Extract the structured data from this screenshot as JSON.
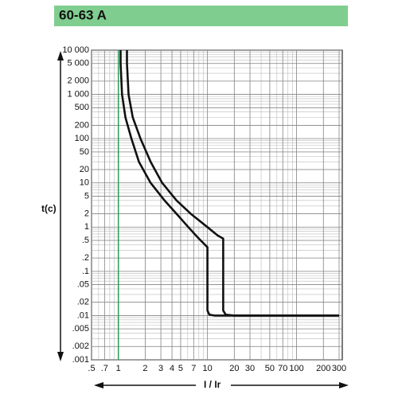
{
  "chart_data": {
    "type": "line",
    "title": "60-63 A",
    "x_label": "I / Ir",
    "y_label": "t(c)",
    "x_scale": "log",
    "y_scale": "log",
    "grid": true,
    "xlim": [
      0.5,
      300
    ],
    "ylim": [
      0.001,
      10000
    ],
    "xticks": [
      {
        "value": 0.5,
        "label": ".5"
      },
      {
        "value": 0.7,
        "label": ".7"
      },
      1,
      2,
      3,
      4,
      5,
      7,
      10,
      20,
      30,
      50,
      70,
      100,
      200,
      300
    ],
    "yticks": [
      {
        "value": 10000,
        "label": "10 000"
      },
      {
        "value": 5000,
        "label": "5 000"
      },
      {
        "value": 2000,
        "label": "2 000"
      },
      {
        "value": 1000,
        "label": "1 000"
      },
      500,
      200,
      100,
      50,
      20,
      10,
      5,
      2,
      1,
      {
        "value": 0.5,
        "label": ".5"
      },
      {
        "value": 0.2,
        "label": ".2"
      },
      {
        "value": 0.1,
        "label": ".1"
      },
      {
        "value": 0.05,
        "label": ".05"
      },
      {
        "value": 0.02,
        "label": ".02"
      },
      {
        "value": 0.01,
        "label": ".01"
      },
      {
        "value": 0.005,
        "label": ".005"
      },
      {
        "value": 0.002,
        "label": ".002"
      },
      {
        "value": 0.001,
        "label": ".001"
      }
    ],
    "reference_x": 1,
    "reference_color": "#2e9b5a",
    "series": [
      {
        "color": "#111111",
        "x": [
          1.06,
          1.06,
          1.1,
          1.2,
          1.4,
          1.7,
          2.3,
          3.3,
          4.5,
          6.1,
          8,
          10,
          10,
          10.5,
          12,
          300
        ],
        "values": [
          10000,
          5000,
          1000,
          300,
          100,
          30,
          10,
          4,
          2,
          1,
          0.55,
          0.35,
          0.013,
          0.0105,
          0.01,
          0.01
        ]
      },
      {
        "color": "#111111",
        "x": [
          1.25,
          1.25,
          1.3,
          1.45,
          1.77,
          2.3,
          3.1,
          4.5,
          6.5,
          10,
          13,
          15,
          15,
          16,
          20,
          300
        ],
        "values": [
          10000,
          5000,
          1000,
          300,
          100,
          30,
          10,
          4,
          2,
          1,
          0.65,
          0.55,
          0.013,
          0.0105,
          0.01,
          0.01
        ]
      }
    ]
  }
}
